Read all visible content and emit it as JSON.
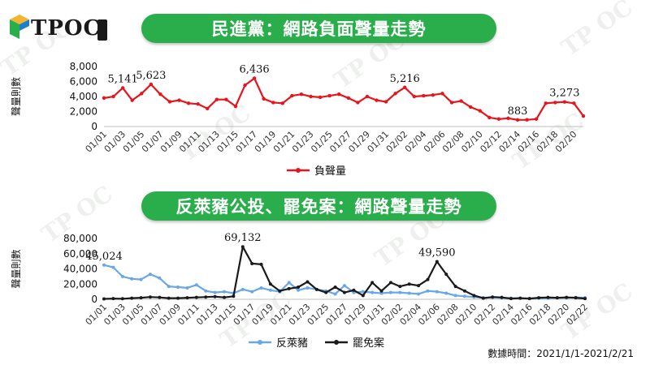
{
  "brand": {
    "name": "TPOC"
  },
  "footnote": "數據時間：2021/1/1-2021/2/21",
  "chart_data": [
    {
      "type": "line",
      "title": "民進黨：網路負面聲量走勢",
      "ylabel": "聲量則數",
      "ylim": [
        0,
        8000
      ],
      "yticks": [
        "0",
        "2,000",
        "4,000",
        "6,000",
        "8,000"
      ],
      "x": [
        "01/01",
        "01/02",
        "01/03",
        "01/04",
        "01/05",
        "01/06",
        "01/07",
        "01/08",
        "01/09",
        "01/10",
        "01/11",
        "01/12",
        "01/13",
        "01/14",
        "01/15",
        "01/16",
        "01/17",
        "01/18",
        "01/19",
        "01/20",
        "01/21",
        "01/22",
        "01/23",
        "01/24",
        "01/25",
        "01/26",
        "01/27",
        "01/28",
        "01/29",
        "01/30",
        "01/31",
        "02/01",
        "02/02",
        "02/03",
        "02/04",
        "02/05",
        "02/06",
        "02/07",
        "02/08",
        "02/09",
        "02/10",
        "02/11",
        "02/12",
        "02/13",
        "02/14",
        "02/15",
        "02/16",
        "02/17",
        "02/18",
        "02/19",
        "02/20",
        "02/21"
      ],
      "xticks": [
        "01/01",
        "01/03",
        "01/05",
        "01/07",
        "01/09",
        "01/11",
        "01/13",
        "01/15",
        "01/17",
        "01/19",
        "01/21",
        "01/23",
        "01/25",
        "01/27",
        "01/29",
        "01/31",
        "02/02",
        "02/04",
        "02/06",
        "02/08",
        "02/10",
        "02/12",
        "02/14",
        "02/16",
        "02/18",
        "02/20"
      ],
      "legend": "bottom-center",
      "series": [
        {
          "name": "負聲量",
          "color": "#e8131b",
          "values": [
            3800,
            4000,
            5141,
            3500,
            4400,
            5623,
            4300,
            3300,
            3500,
            3100,
            3000,
            2400,
            3600,
            3600,
            2700,
            5500,
            6436,
            3700,
            3200,
            3100,
            4100,
            4300,
            4000,
            3900,
            4100,
            4300,
            3800,
            3200,
            4000,
            3500,
            3300,
            4400,
            5216,
            4000,
            4100,
            4200,
            4400,
            3200,
            3400,
            2600,
            2100,
            1200,
            1000,
            1100,
            883,
            900,
            1000,
            3100,
            3200,
            3273,
            3100,
            1400
          ]
        }
      ],
      "labels": [
        {
          "index": 2,
          "text": "5,141"
        },
        {
          "index": 5,
          "text": "5,623"
        },
        {
          "index": 16,
          "text": "6,436"
        },
        {
          "index": 32,
          "text": "5,216"
        },
        {
          "index": 44,
          "text": "883"
        },
        {
          "index": 49,
          "text": "3,273"
        }
      ]
    },
    {
      "type": "line",
      "title": "反萊豬公投、罷免案：網路聲量走勢",
      "ylabel": "聲量則數",
      "ylim": [
        0,
        80000
      ],
      "yticks": [
        "0",
        "20,000",
        "40,000",
        "60,000",
        "80,000"
      ],
      "x": [
        "01/01",
        "01/02",
        "01/03",
        "01/04",
        "01/05",
        "01/06",
        "01/07",
        "01/08",
        "01/09",
        "01/10",
        "01/11",
        "01/12",
        "01/13",
        "01/14",
        "01/15",
        "01/16",
        "01/17",
        "01/18",
        "01/19",
        "01/20",
        "01/21",
        "01/22",
        "01/23",
        "01/24",
        "01/25",
        "01/26",
        "01/27",
        "01/28",
        "01/29",
        "01/30",
        "01/31",
        "02/01",
        "02/02",
        "02/03",
        "02/04",
        "02/05",
        "02/06",
        "02/07",
        "02/08",
        "02/09",
        "02/10",
        "02/11",
        "02/12",
        "02/13",
        "02/14",
        "02/15",
        "02/16",
        "02/17",
        "02/18",
        "02/19",
        "02/20",
        "02/21",
        "02/22"
      ],
      "xticks": [
        "01/01",
        "01/03",
        "01/05",
        "01/07",
        "01/09",
        "01/11",
        "01/13",
        "01/15",
        "01/17",
        "01/19",
        "01/21",
        "01/23",
        "01/25",
        "01/27",
        "01/29",
        "01/31",
        "02/02",
        "02/04",
        "02/06",
        "02/08",
        "02/10",
        "02/12",
        "02/14",
        "02/16",
        "02/18",
        "02/20",
        "02/22"
      ],
      "legend": "bottom-center",
      "series": [
        {
          "name": "反萊豬",
          "color": "#6aa7e8",
          "values": [
            45024,
            42000,
            30000,
            27000,
            26000,
            33000,
            28000,
            17000,
            16000,
            15000,
            19000,
            11000,
            9000,
            10000,
            8000,
            13000,
            10000,
            15000,
            12000,
            10000,
            22000,
            12000,
            15000,
            13000,
            11000,
            7000,
            18000,
            9000,
            10000,
            9000,
            8000,
            9000,
            9000,
            8000,
            7000,
            11000,
            10000,
            8000,
            5000,
            4000,
            3000,
            2000,
            2500,
            2000,
            1500,
            1500,
            1000,
            1500,
            1500,
            2000,
            2000,
            2500,
            2000
          ]
        },
        {
          "name": "罷免案",
          "color": "#1a1a1a",
          "values": [
            500,
            1000,
            800,
            1500,
            2000,
            3000,
            2500,
            1500,
            1500,
            2000,
            2500,
            3000,
            3500,
            2500,
            4000,
            69132,
            47000,
            46000,
            20000,
            11000,
            14000,
            16000,
            23000,
            13000,
            9000,
            16000,
            9000,
            12000,
            5000,
            22000,
            11000,
            22000,
            17000,
            20000,
            18000,
            26000,
            49590,
            33000,
            17000,
            11000,
            5000,
            1500,
            3000,
            2500,
            1000,
            1500,
            1000,
            2000,
            2500,
            2000,
            2500,
            2000,
            1000
          ]
        }
      ],
      "labels": [
        {
          "series": 0,
          "index": 0,
          "text": "45,024"
        },
        {
          "series": 1,
          "index": 15,
          "text": "69,132"
        },
        {
          "series": 1,
          "index": 36,
          "text": "49,590"
        }
      ]
    }
  ]
}
